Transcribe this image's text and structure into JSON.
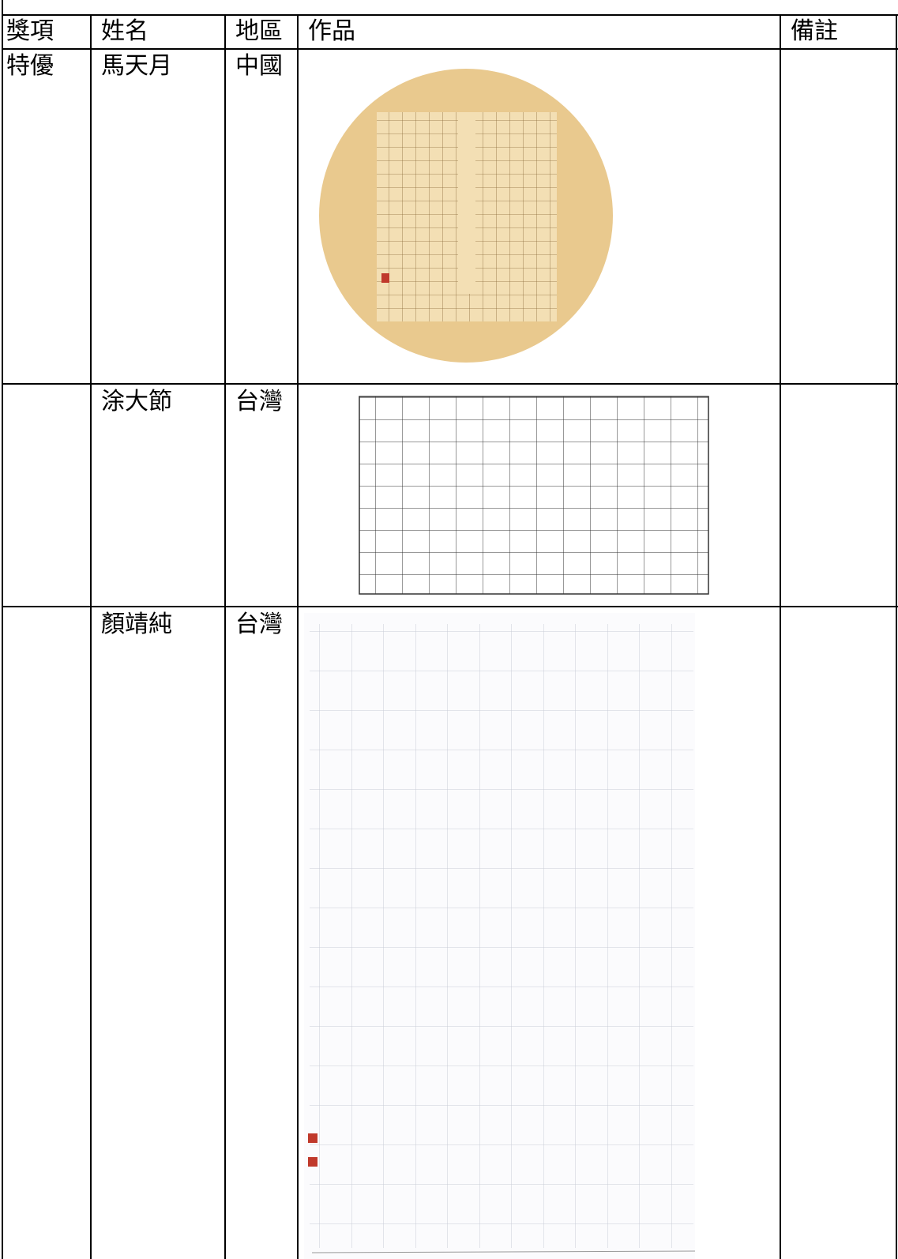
{
  "table": {
    "header": [
      "獎項",
      "姓名",
      "地區",
      "作品",
      "備註"
    ],
    "rows": [
      {
        "award": "特優",
        "name": "馬天月",
        "region": "中國"
      },
      {
        "name": "涂大節",
        "region": "台灣"
      },
      {
        "name": "顏靖純",
        "region": "台灣"
      }
    ]
  }
}
